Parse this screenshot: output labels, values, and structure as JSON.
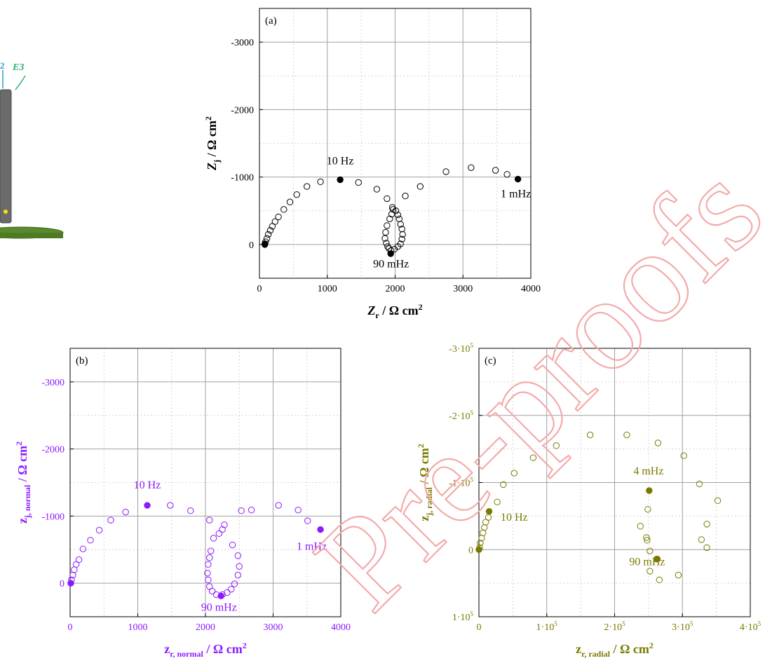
{
  "watermark": "Pre-proofs",
  "schematic": {
    "labels": [
      "2",
      "E3"
    ],
    "colors": {
      "probe": "#6b6b6b",
      "disk": "#5b8a2e",
      "marker": "#f2e600",
      "e3": "#2db36b",
      "e2": "#2a9bd6"
    }
  },
  "chart_data": [
    {
      "id": "a",
      "type": "scatter",
      "panel_label": "(a)",
      "color": "#000000",
      "xlim": [
        0,
        4000
      ],
      "ylim": [
        500,
        -3500
      ],
      "x_ticks": [
        {
          "v": 0,
          "label": "0"
        },
        {
          "v": 1000,
          "label": "1000"
        },
        {
          "v": 2000,
          "label": "2000"
        },
        {
          "v": 3000,
          "label": "3000"
        },
        {
          "v": 4000,
          "label": "4000"
        }
      ],
      "y_ticks": [
        {
          "v": 0,
          "label": "0"
        },
        {
          "v": -1000,
          "label": "-1000"
        },
        {
          "v": -2000,
          "label": "-2000"
        },
        {
          "v": -3000,
          "label": "-3000"
        }
      ],
      "xlabel": {
        "main": "Z",
        "sub": "r",
        "unit": " / Ω cm",
        "sup": "2"
      },
      "ylabel": {
        "main": "Z",
        "sub": "j",
        "unit": " / Ω cm",
        "sup": "2"
      },
      "open_points": [
        [
          80,
          0
        ],
        [
          90,
          -40
        ],
        [
          110,
          -90
        ],
        [
          130,
          -150
        ],
        [
          160,
          -210
        ],
        [
          190,
          -270
        ],
        [
          230,
          -340
        ],
        [
          280,
          -410
        ],
        [
          360,
          -520
        ],
        [
          450,
          -630
        ],
        [
          550,
          -740
        ],
        [
          700,
          -860
        ],
        [
          900,
          -930
        ],
        [
          1460,
          -920
        ],
        [
          1730,
          -820
        ],
        [
          1880,
          -680
        ],
        [
          2150,
          -720
        ],
        [
          2370,
          -860
        ],
        [
          2750,
          -1080
        ],
        [
          3120,
          -1140
        ],
        [
          3480,
          -1100
        ],
        [
          3650,
          -1040
        ],
        [
          1960,
          -550
        ],
        [
          1970,
          -520
        ],
        [
          1950,
          -450
        ],
        [
          1920,
          -380
        ],
        [
          1880,
          -280
        ],
        [
          1860,
          -180
        ],
        [
          1850,
          -90
        ],
        [
          1870,
          -20
        ],
        [
          1890,
          30
        ],
        [
          1910,
          60
        ],
        [
          1940,
          90
        ],
        [
          1990,
          70
        ],
        [
          2040,
          30
        ],
        [
          2080,
          -10
        ],
        [
          2100,
          -80
        ],
        [
          2110,
          -150
        ],
        [
          2100,
          -230
        ],
        [
          2080,
          -300
        ],
        [
          2060,
          -380
        ],
        [
          2040,
          -440
        ],
        [
          2010,
          -500
        ]
      ],
      "filled_points": [
        [
          80,
          -10
        ],
        [
          1190,
          -960
        ],
        [
          3810,
          -970
        ],
        [
          1935,
          135
        ]
      ],
      "annotations": [
        {
          "text": "10 Hz",
          "x": 1190,
          "y": -1190
        },
        {
          "text": "1 mHz",
          "x": 3780,
          "y": -700
        },
        {
          "text": "90 mHz",
          "x": 1940,
          "y": 340
        }
      ],
      "grid": true
    },
    {
      "id": "b",
      "type": "scatter",
      "panel_label": "(b)",
      "color": "#8c1aff",
      "xlim": [
        0,
        4000
      ],
      "ylim": [
        500,
        -3500
      ],
      "x_ticks": [
        {
          "v": 0,
          "label": "0"
        },
        {
          "v": 1000,
          "label": "1000"
        },
        {
          "v": 2000,
          "label": "2000"
        },
        {
          "v": 3000,
          "label": "3000"
        },
        {
          "v": 4000,
          "label": "4000"
        }
      ],
      "y_ticks": [
        {
          "v": 0,
          "label": "0"
        },
        {
          "v": -1000,
          "label": "-1000"
        },
        {
          "v": -2000,
          "label": "-2000"
        },
        {
          "v": -3000,
          "label": "-3000"
        }
      ],
      "xlabel": {
        "main": "z",
        "sub": "r, normal",
        "unit": " / Ω cm",
        "sup": "2"
      },
      "ylabel": {
        "main": "z",
        "sub": "j, normal",
        "unit": " / Ω cm",
        "sup": "2"
      },
      "open_points": [
        [
          20,
          -50
        ],
        [
          40,
          -120
        ],
        [
          60,
          -200
        ],
        [
          90,
          -280
        ],
        [
          130,
          -350
        ],
        [
          190,
          -510
        ],
        [
          300,
          -640
        ],
        [
          430,
          -790
        ],
        [
          600,
          -940
        ],
        [
          820,
          -1060
        ],
        [
          1480,
          -1160
        ],
        [
          1780,
          -1080
        ],
        [
          2530,
          -1080
        ],
        [
          2680,
          -1090
        ],
        [
          3080,
          -1160
        ],
        [
          3370,
          -1090
        ],
        [
          3510,
          -930
        ],
        [
          2060,
          -940
        ],
        [
          2120,
          -670
        ],
        [
          2200,
          -740
        ],
        [
          2250,
          -800
        ],
        [
          2280,
          -870
        ],
        [
          2400,
          -570
        ],
        [
          2480,
          -410
        ],
        [
          2500,
          -250
        ],
        [
          2480,
          -120
        ],
        [
          2430,
          10
        ],
        [
          2380,
          90
        ],
        [
          2320,
          140
        ],
        [
          2250,
          170
        ],
        [
          2160,
          170
        ],
        [
          2100,
          120
        ],
        [
          2060,
          50
        ],
        [
          2040,
          -50
        ],
        [
          2030,
          -150
        ],
        [
          2040,
          -280
        ],
        [
          2060,
          -380
        ],
        [
          2080,
          -480
        ]
      ],
      "filled_points": [
        [
          10,
          0
        ],
        [
          1140,
          -1160
        ],
        [
          3700,
          -800
        ],
        [
          2230,
          190
        ]
      ],
      "annotations": [
        {
          "text": "10 Hz",
          "x": 1140,
          "y": -1410
        },
        {
          "text": "1 mHz",
          "x": 3570,
          "y": -500
        },
        {
          "text": "90 mHz",
          "x": 2200,
          "y": 410
        }
      ],
      "grid": true
    },
    {
      "id": "c",
      "type": "scatter",
      "panel_label": "(c)",
      "color": "#7a7a00",
      "xlim": [
        0,
        400000
      ],
      "ylim": [
        100000,
        -300000
      ],
      "x_ticks": [
        {
          "v": 0,
          "label": "0"
        },
        {
          "v": 100000,
          "label": "1·10",
          "sup": "5"
        },
        {
          "v": 200000,
          "label": "2·10",
          "sup": "5"
        },
        {
          "v": 300000,
          "label": "3·10",
          "sup": "5"
        },
        {
          "v": 400000,
          "label": "4·10",
          "sup": "5"
        }
      ],
      "y_ticks": [
        {
          "v": 100000,
          "label": "1·10",
          "sup": "5"
        },
        {
          "v": 0,
          "label": "0"
        },
        {
          "v": -100000,
          "label": "-1·10",
          "sup": "5"
        },
        {
          "v": -200000,
          "label": "-2·10",
          "sup": "5"
        },
        {
          "v": -300000,
          "label": "-3·10",
          "sup": "5"
        }
      ],
      "xlabel": {
        "main": "z",
        "sub": "r, radial",
        "unit": " / Ω cm",
        "sup": "2"
      },
      "ylabel": {
        "main": "z",
        "sub": "j, radial",
        "unit": " / Ω cm",
        "sup": "2"
      },
      "open_points": [
        [
          1000,
          -3000
        ],
        [
          2000,
          -10000
        ],
        [
          4000,
          -17000
        ],
        [
          6000,
          -25000
        ],
        [
          8000,
          -33000
        ],
        [
          10000,
          -41000
        ],
        [
          14000,
          -48000
        ],
        [
          27000,
          -71000
        ],
        [
          36000,
          -97000
        ],
        [
          52000,
          -114000
        ],
        [
          80000,
          -137000
        ],
        [
          114000,
          -155000
        ],
        [
          164000,
          -171000
        ],
        [
          218000,
          -171000
        ],
        [
          264000,
          -159000
        ],
        [
          302000,
          -140000
        ],
        [
          325000,
          -98000
        ],
        [
          352000,
          -73000
        ],
        [
          336000,
          -38000
        ],
        [
          328000,
          -15000
        ],
        [
          336000,
          -3000
        ],
        [
          249000,
          -60000
        ],
        [
          238000,
          -35000
        ],
        [
          247000,
          -18000
        ],
        [
          248000,
          -14000
        ],
        [
          252000,
          2000
        ],
        [
          262000,
          14000
        ],
        [
          294000,
          38000
        ],
        [
          252000,
          32000
        ],
        [
          266000,
          45000
        ]
      ],
      "filled_points": [
        [
          0,
          0
        ],
        [
          15000,
          -57000
        ],
        [
          251000,
          -88000
        ],
        [
          263000,
          14000
        ]
      ],
      "annotations": [
        {
          "text": "4 mHz",
          "x": 250000,
          "y": -112000
        },
        {
          "text": "10 Hz",
          "x": 52000,
          "y": -43000
        },
        {
          "text": "90 mHz",
          "x": 248000,
          "y": 23000
        }
      ],
      "grid": true
    }
  ]
}
